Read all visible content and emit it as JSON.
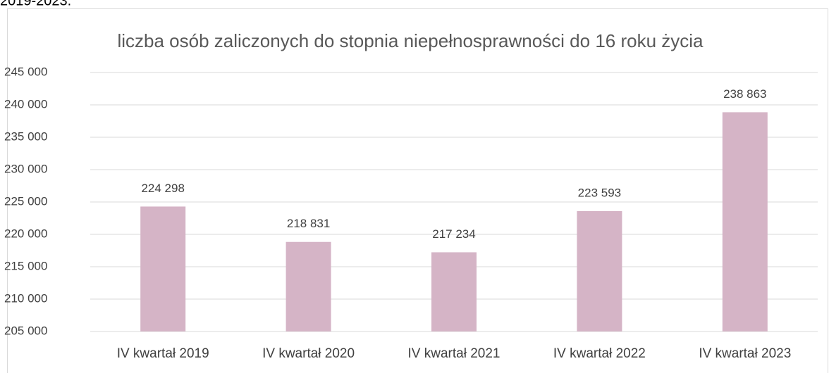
{
  "caption": "2019-2023.",
  "chart_data": {
    "type": "bar",
    "title": "liczba osób zaliczonych do stopnia niepełnosprawności do 16 roku życia",
    "categories": [
      "IV kwartał 2019",
      "IV kwartał 2020",
      "IV kwartał 2021",
      "IV kwartał 2022",
      "IV kwartał 2023"
    ],
    "values": [
      224298,
      218831,
      217234,
      223593,
      238863
    ],
    "value_labels": [
      "224 298",
      "218 831",
      "217 234",
      "223 593",
      "238 863"
    ],
    "color": "#d5b4c6",
    "ylim": [
      205000,
      245000
    ],
    "yticks": [
      {
        "value": 205000,
        "label": "205 000"
      },
      {
        "value": 210000,
        "label": "210 000"
      },
      {
        "value": 215000,
        "label": "215 000"
      },
      {
        "value": 220000,
        "label": "220 000"
      },
      {
        "value": 225000,
        "label": "225 000"
      },
      {
        "value": 230000,
        "label": "230 000"
      },
      {
        "value": 235000,
        "label": "235 000"
      },
      {
        "value": 240000,
        "label": "240 000"
      },
      {
        "value": 245000,
        "label": "245 000"
      }
    ],
    "grid": true
  }
}
